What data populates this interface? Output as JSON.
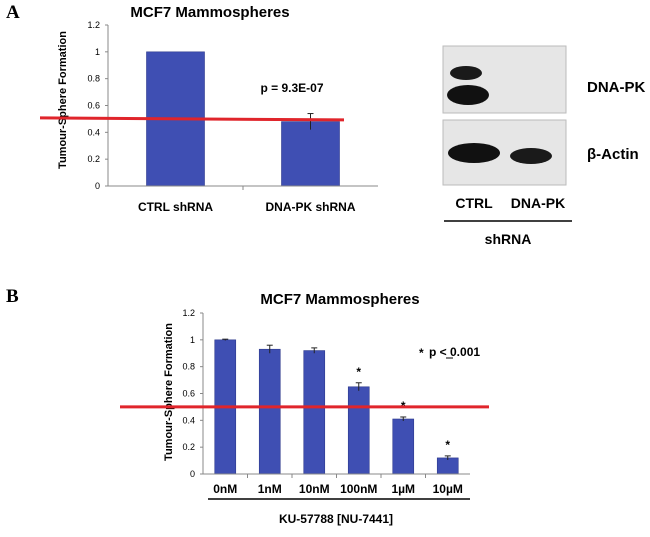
{
  "panels": {
    "a_label": "A",
    "b_label": "B"
  },
  "colors": {
    "bar": "#3f4fb3",
    "bar_edge": "#2e3a8c",
    "threshold": "#e0252b",
    "axis": "#888888"
  },
  "chart_data": [
    {
      "type": "bar",
      "title": "MCF7 Mammospheres",
      "ylabel": "Tumour-Sphere Formation",
      "xlabel": "",
      "ylim": [
        0,
        1.2
      ],
      "yticks": [
        "0",
        "0.2",
        "0.4",
        "0.6",
        "0.8",
        "1",
        "1.2"
      ],
      "categories": [
        "CTRL shRNA",
        "DNA-PK shRNA"
      ],
      "values": [
        1.0,
        0.48
      ],
      "errors": [
        0.0,
        0.06
      ],
      "threshold": 0.5,
      "annotation": "p = 9.3E-07"
    },
    {
      "type": "bar",
      "title": "MCF7 Mammospheres",
      "ylabel": "Tumour-Sphere Formation",
      "xlabel": "KU-57788 [NU-7441]",
      "ylim": [
        0,
        1.2
      ],
      "yticks": [
        "0",
        "0.2",
        "0.4",
        "0.6",
        "0.8",
        "1",
        "1.2"
      ],
      "categories": [
        "0nM",
        "1nM",
        "10nM",
        "100nM",
        "1µM",
        "10µM"
      ],
      "values": [
        1.0,
        0.93,
        0.92,
        0.65,
        0.41,
        0.12
      ],
      "errors": [
        0.005,
        0.03,
        0.02,
        0.03,
        0.015,
        0.015
      ],
      "significant": [
        false,
        false,
        false,
        true,
        true,
        true
      ],
      "star": "*",
      "threshold": 0.5,
      "annotation_star": "*",
      "annotation_text": "p < 0.001"
    }
  ],
  "blot": {
    "rows": [
      "DNA-PK",
      "β-Actin"
    ],
    "lanes": [
      "CTRL",
      "DNA-PK"
    ],
    "group_label": "shRNA"
  }
}
